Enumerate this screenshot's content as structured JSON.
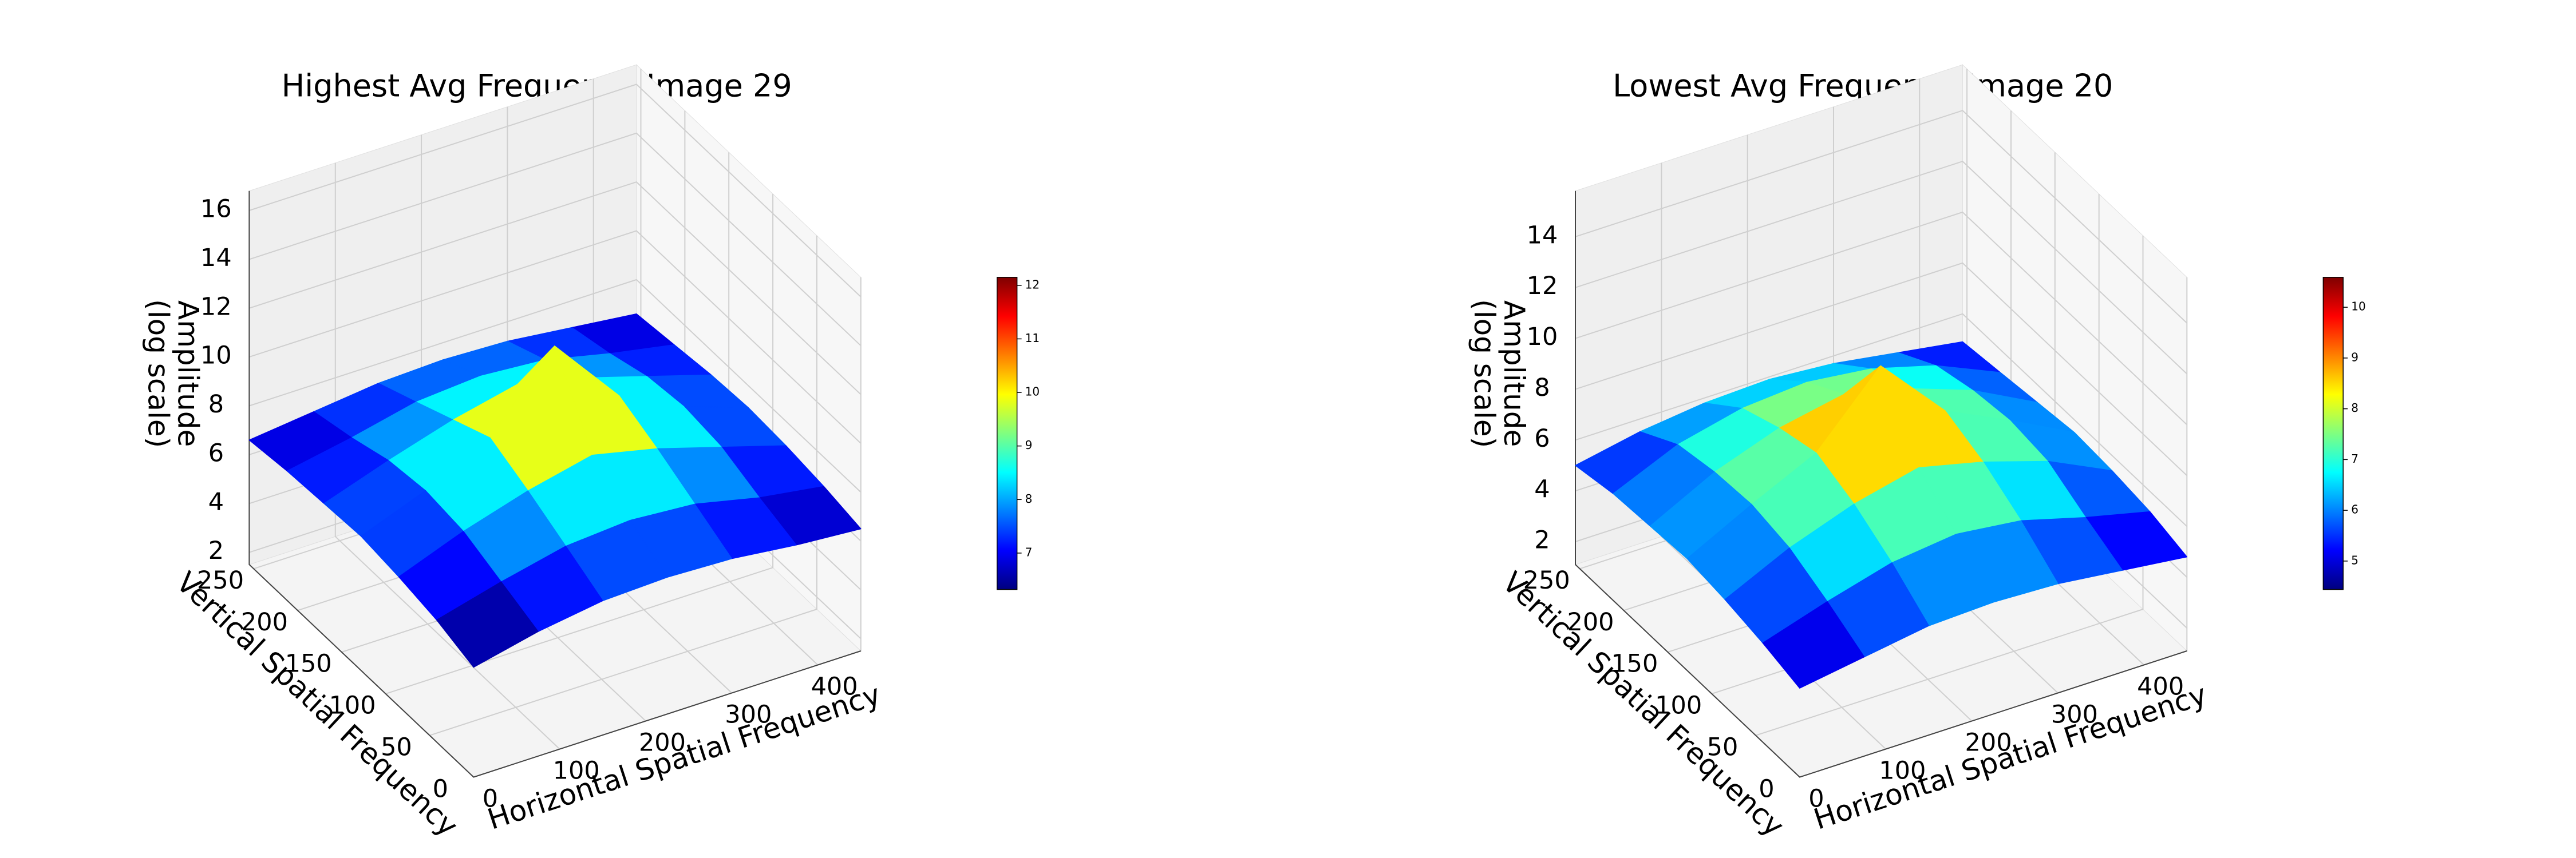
{
  "chart_data": [
    {
      "type": "surface",
      "title": "Highest Avg Frequency Image 29",
      "xlabel": "Horizontal Spatial Frequency",
      "ylabel": "Vertical Spatial Frequency",
      "zlabel": [
        "Amplitude",
        "(log scale)"
      ],
      "x": [
        0,
        75,
        150,
        225,
        300,
        375,
        450
      ],
      "y": [
        0,
        42,
        85,
        128,
        170,
        212,
        255
      ],
      "z": [
        [
          6.0,
          6.6,
          7.0,
          7.1,
          7.0,
          6.7,
          6.5
        ],
        [
          6.5,
          7.2,
          7.8,
          8.0,
          7.8,
          7.2,
          6.8
        ],
        [
          6.8,
          7.8,
          8.6,
          9.2,
          8.6,
          7.8,
          7.0
        ],
        [
          7.0,
          8.0,
          9.3,
          12.2,
          9.3,
          8.0,
          7.1
        ],
        [
          6.9,
          7.8,
          8.6,
          9.2,
          8.6,
          7.8,
          7.0
        ],
        [
          6.8,
          7.3,
          7.9,
          8.1,
          7.9,
          7.3,
          6.8
        ],
        [
          6.6,
          6.9,
          7.2,
          7.3,
          7.2,
          6.9,
          6.6
        ]
      ],
      "xlim": [
        0,
        450
      ],
      "ylim": [
        0,
        255
      ],
      "zlim": [
        1.5,
        16.8
      ],
      "xticks": [
        0,
        100,
        200,
        300,
        400
      ],
      "yticks": [
        0,
        50,
        100,
        150,
        200,
        250
      ],
      "zticks": [
        2,
        4,
        6,
        8,
        10,
        12,
        14,
        16
      ],
      "colormap": "jet",
      "clim": [
        6.32,
        12.15
      ],
      "cticks": [
        7,
        8,
        9,
        10,
        11,
        12
      ]
    },
    {
      "type": "surface",
      "title": "Lowest Avg Frequency Image 20",
      "xlabel": "Horizontal Spatial Frequency",
      "ylabel": "Vertical Spatial Frequency",
      "zlabel": [
        "Amplitude",
        "(log scale)"
      ],
      "x": [
        0,
        75,
        150,
        225,
        300,
        375,
        450
      ],
      "y": [
        0,
        42,
        85,
        128,
        170,
        212,
        255
      ],
      "z": [
        [
          4.6,
          5.0,
          5.4,
          5.5,
          5.4,
          5.1,
          4.8
        ],
        [
          5.0,
          5.8,
          6.5,
          6.8,
          6.5,
          5.8,
          5.2
        ],
        [
          5.3,
          6.5,
          7.4,
          8.0,
          7.4,
          6.6,
          5.4
        ],
        [
          5.5,
          6.8,
          8.0,
          10.6,
          8.0,
          6.8,
          5.5
        ],
        [
          5.4,
          6.7,
          7.6,
          8.1,
          7.5,
          6.6,
          5.3
        ],
        [
          5.3,
          6.4,
          7.0,
          7.2,
          6.9,
          6.2,
          5.1
        ],
        [
          5.0,
          5.5,
          5.8,
          5.9,
          5.7,
          5.3,
          4.9
        ]
      ],
      "xlim": [
        0,
        450
      ],
      "ylim": [
        0,
        255
      ],
      "zlim": [
        1.1,
        15.8
      ],
      "xticks": [
        0,
        100,
        200,
        300,
        400
      ],
      "yticks": [
        0,
        50,
        100,
        150,
        200,
        250
      ],
      "zticks": [
        2,
        4,
        6,
        8,
        10,
        12,
        14
      ],
      "colormap": "jet",
      "clim": [
        4.44,
        10.59
      ],
      "cticks": [
        5,
        6,
        7,
        8,
        9,
        10
      ]
    }
  ]
}
